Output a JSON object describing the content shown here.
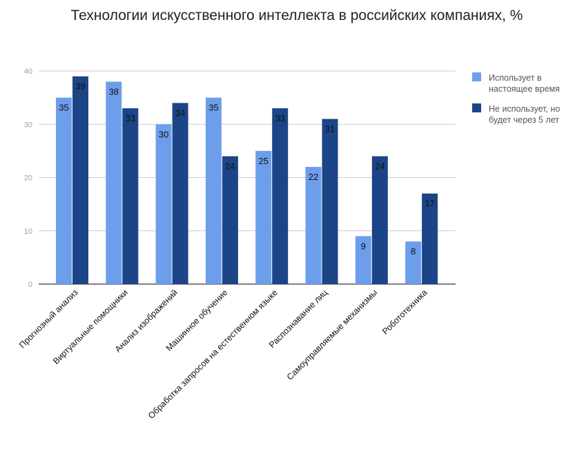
{
  "chart_data": {
    "type": "bar",
    "title": "Технологии искусственного интеллекта в российских компаниях, %",
    "categories": [
      "Прогнозный анализ",
      "Виртуальные помощники",
      "Анализ изображений",
      "Машинное обучение",
      "Обработка запросов на естественном языке",
      "Распознавание лиц",
      "Самоуправляемые механизмы",
      "Робототехника"
    ],
    "series": [
      {
        "name": "Использует в настоящее время",
        "legend_lines": [
          "Использует в",
          "настоящее время"
        ],
        "color": "#6d9eeb",
        "values": [
          35,
          38,
          30,
          35,
          25,
          22,
          9,
          8
        ]
      },
      {
        "name": "Не использует, но будет через 5 лет",
        "legend_lines": [
          "Не использует, но",
          "будет через 5 лет"
        ],
        "color": "#1c4587",
        "values": [
          39,
          33,
          34,
          24,
          33,
          31,
          24,
          17
        ]
      }
    ],
    "yticks": [
      0,
      10,
      20,
      30,
      40
    ],
    "ylim": [
      0,
      40
    ],
    "xlabel": "",
    "ylabel": "",
    "grid": true,
    "legend_position": "right"
  }
}
